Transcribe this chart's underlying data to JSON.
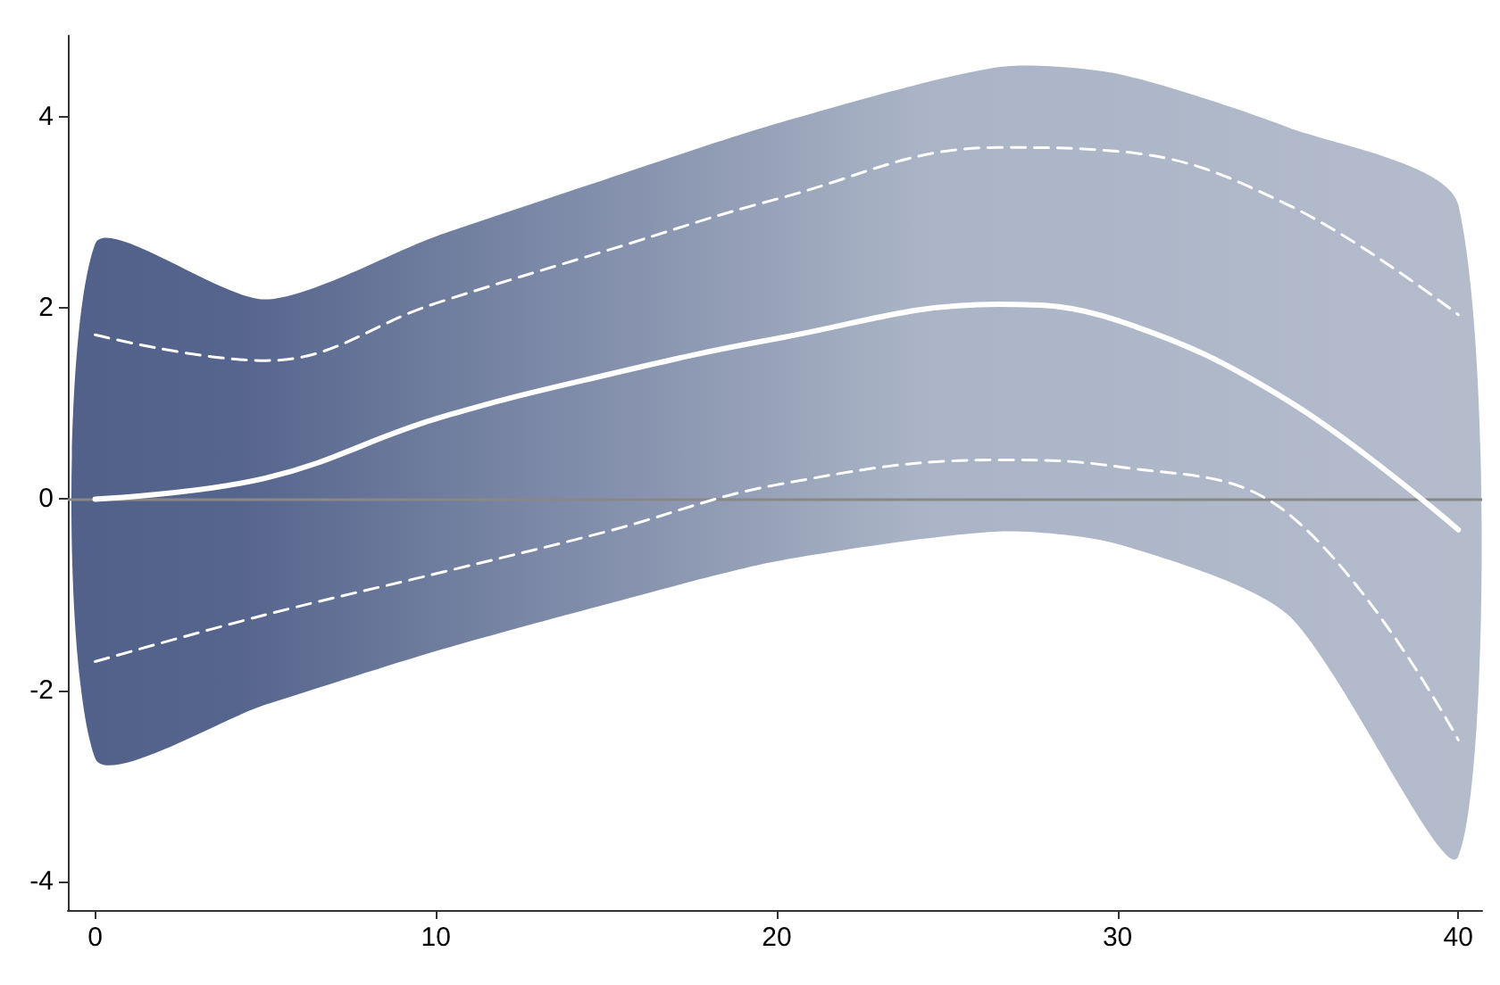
{
  "chart_data": {
    "type": "line",
    "xlim": [
      -0.8,
      40.7
    ],
    "ylim": [
      -4.3,
      4.85
    ],
    "xticks": [
      0,
      10,
      20,
      30,
      40
    ],
    "yticks": [
      -4,
      -2,
      0,
      2,
      4
    ],
    "grid": false,
    "marker": "none",
    "x": [
      0,
      5,
      10,
      15,
      20,
      26.5,
      30,
      35,
      40
    ],
    "series": [
      {
        "color": "#ffffff",
        "line_style": "solid",
        "values": [
          0,
          0.22,
          0.84,
          1.3,
          1.68,
          2.04,
          1.87,
          1.03,
          -0.32
        ],
        "lower": [
          -2.71,
          -2.15,
          -1.59,
          -1.1,
          -0.65,
          -0.34,
          -0.47,
          -1.21,
          -3.74
        ],
        "upper": [
          2.67,
          2.09,
          2.75,
          3.35,
          3.93,
          4.52,
          4.45,
          3.89,
          3.08
        ]
      },
      {
        "color": "#ffffff",
        "line_style": "dashed",
        "values": [
          -1.7,
          -1.21,
          -0.78,
          -0.34,
          0.15,
          0.41,
          0.34,
          -0.15,
          -2.52
        ]
      },
      {
        "color": "#ffffff",
        "line_style": "dashed",
        "values": [
          1.72,
          1.45,
          2.05,
          2.6,
          3.14,
          3.68,
          3.64,
          3.08,
          1.93
        ]
      }
    ],
    "ref_lines": [
      {
        "axis": "y",
        "value": 0,
        "color": "#888888"
      }
    ]
  }
}
